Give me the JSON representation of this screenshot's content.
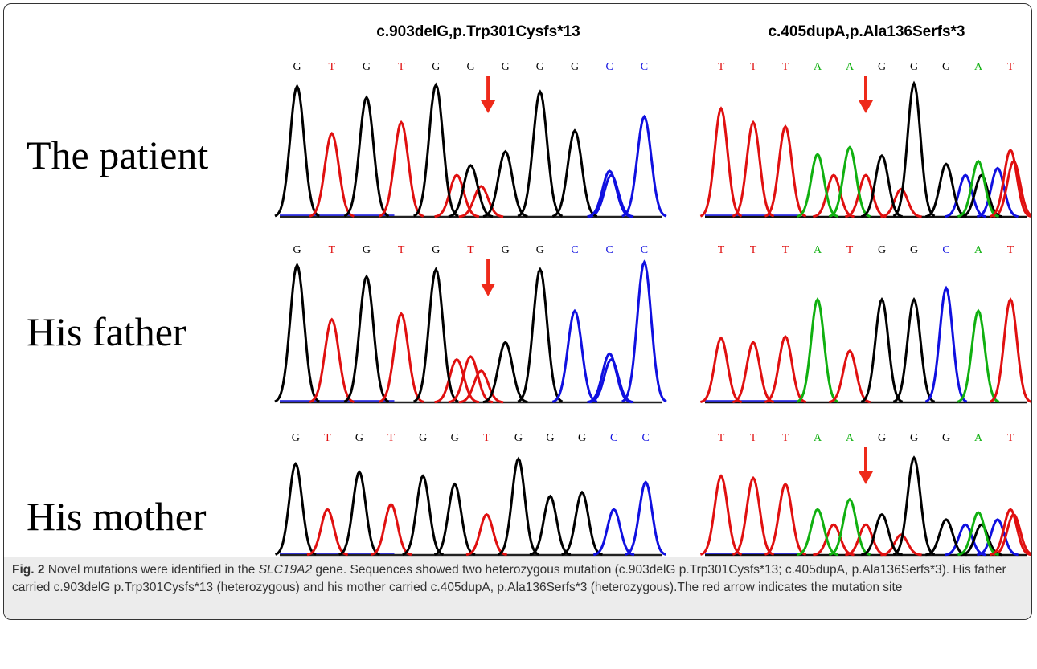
{
  "figure": {
    "columns": [
      {
        "title": "c.903delG,p.Trp301Cysfs*13"
      },
      {
        "title": "c.405dupA,p.Ala136Serfs*3"
      }
    ],
    "rows": [
      {
        "label": "The patient",
        "traces": [
          {
            "bases": [
              "G",
              "T",
              "G",
              "T",
              "G",
              "G",
              "G",
              "G",
              "G",
              "C",
              "C"
            ]
          },
          {
            "bases": [
              "T",
              "T",
              "T",
              "A",
              "A",
              "G",
              "G",
              "G",
              "A",
              "T"
            ]
          }
        ]
      },
      {
        "label": "His father",
        "traces": [
          {
            "bases": [
              "G",
              "T",
              "G",
              "T",
              "G",
              "T",
              "G",
              "G",
              "C",
              "C",
              "C"
            ]
          },
          {
            "bases": [
              "T",
              "T",
              "T",
              "A",
              "T",
              "G",
              "G",
              "C",
              "A",
              "T"
            ]
          }
        ]
      },
      {
        "label": "His mother",
        "traces": [
          {
            "bases": [
              "G",
              "T",
              "G",
              "T",
              "G",
              "G",
              "T",
              "G",
              "G",
              "G",
              "C",
              "C"
            ]
          },
          {
            "bases": [
              "T",
              "T",
              "T",
              "A",
              "A",
              "G",
              "G",
              "G",
              "A",
              "T"
            ]
          }
        ]
      }
    ]
  },
  "caption": {
    "label": "Fig. 2",
    "parts": [
      "Novel mutations were identified in the ",
      "SLC19A2",
      " gene. Sequences showed two heterozygous mutation (c.903delG p.Trp301Cysfs*13; c.405dupA, p.Ala136Serfs*3). His father carried c.903delG p.Trp301Cysfs*13 (heterozygous) and his mother carried c.405dupA, p.Ala136Serfs*3 (heterozygous).The red arrow indicates the mutation site"
    ]
  }
}
